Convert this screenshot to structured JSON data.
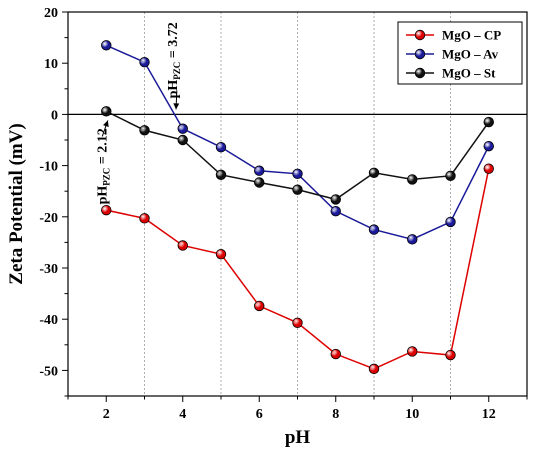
{
  "chart_data": {
    "type": "line",
    "xlabel": "pH",
    "ylabel": "Zeta Potential (mV)",
    "xlim": [
      1,
      13
    ],
    "ylim": [
      -55,
      20
    ],
    "x_ticks": [
      2,
      4,
      6,
      8,
      10,
      12
    ],
    "x_minor_ticks": [
      1,
      3,
      5,
      7,
      9,
      11,
      13
    ],
    "y_ticks": [
      20,
      10,
      0,
      -10,
      -20,
      -30,
      -40,
      -50
    ],
    "grid_vertical_at": [
      3,
      5,
      7,
      9,
      11
    ],
    "zero_line": true,
    "legend_position": "top-right",
    "x": [
      2,
      3,
      4,
      5,
      6,
      7,
      8,
      9,
      10,
      11,
      12
    ],
    "series": [
      {
        "name": "MgO – CP",
        "color": "#dd0000",
        "values": [
          -18.7,
          -20.3,
          -25.6,
          -27.3,
          -37.4,
          -40.7,
          -46.8,
          -49.7,
          -46.3,
          -47.0,
          -10.6
        ]
      },
      {
        "name": "MgO – Av",
        "color": "#1a1a9a",
        "values": [
          13.5,
          10.2,
          -2.8,
          -6.4,
          -11.0,
          -11.6,
          -18.9,
          -22.5,
          -24.4,
          -21.0,
          -6.2
        ]
      },
      {
        "name": "MgO – St",
        "color": "#111111",
        "values": [
          0.6,
          -3.1,
          -5.0,
          -11.8,
          -13.3,
          -14.7,
          -16.6,
          -11.4,
          -12.7,
          -12.0,
          -1.5
        ]
      }
    ],
    "annotations": [
      {
        "main": "pH",
        "sub": "PZC",
        "value": "= 2.12",
        "x": 2.12,
        "y": 0
      },
      {
        "main": "pH",
        "sub": "PZC",
        "value": "= 3.72",
        "x": 3.72,
        "y": 0
      }
    ]
  }
}
